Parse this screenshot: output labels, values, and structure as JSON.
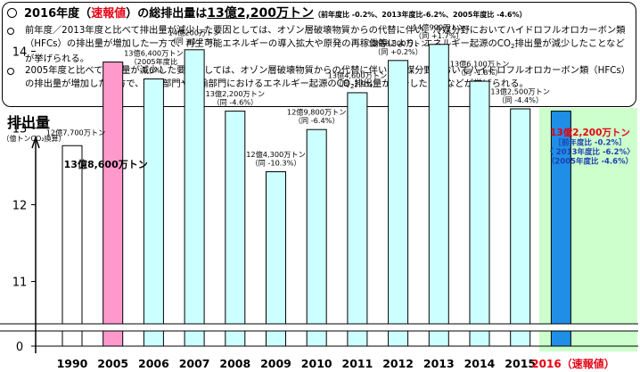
{
  "summary": {
    "title_main": "2016年度（",
    "title_red": "速報値",
    "title_mid": "）の総排出量は",
    "title_value": "13億2,200万トン",
    "title_note": "（前年度比 -0.2%、2013年度比-6.2%、2005年度比 -4.6%）",
    "bullet1_a": "前年度／2013年度と比べて排出量が減少した要因としては、オゾン層破壊物質からの代替に伴い、冷媒分野においてハイドロフルオロカーボン類（HFCs）の排出量が増加した一方で、再生可能エネルギーの導入拡大や原発の再稼働等により、エネルギー起源のCO",
    "bullet1_sub": "2",
    "bullet1_b": "排出量が減少したことなどが挙げられる。",
    "bullet2_a": "2005年度と比べて排出量が減少した要因としては、オゾン層破壊物質からの代替に伴い、冷媒分野においてハイドロフルオロカーボン類（HFCs）の排出量が増加した一方で、産業部門や運輸部門におけるエネルギー起源のCO",
    "bullet2_sub": "2",
    "bullet2_b": "排出量が減少したことなどが挙げられる。"
  },
  "chart_data": {
    "type": "bar",
    "ylabel": "排出量",
    "ylabel_unit": "（億トンCO₂換算）",
    "yticks": [
      "14",
      "13",
      "12",
      "11",
      "0"
    ],
    "categories": [
      "1990",
      "2005",
      "2006",
      "2007",
      "2008",
      "2009",
      "2010",
      "2011",
      "2012",
      "2013",
      "2014",
      "2015",
      "2016（速報値）"
    ],
    "values": [
      12.77,
      13.86,
      13.64,
      14.02,
      13.22,
      12.43,
      12.98,
      13.46,
      13.88,
      14.09,
      13.61,
      13.25,
      13.22
    ],
    "bar_styles": [
      "white",
      "pink",
      "cyan",
      "cyan",
      "cyan",
      "cyan",
      "cyan",
      "cyan",
      "cyan",
      "cyan",
      "cyan",
      "cyan",
      "blue"
    ],
    "labels": [
      [
        "12億7,700万トン"
      ],
      [
        "13億8,600万トン"
      ],
      [
        "13億6,400万トン",
        "（2005年度比",
        "-1.6%）"
      ],
      [
        "14億200万トン",
        "（同 +1.2 %）"
      ],
      [
        "13億2,200万トン",
        "（同 -4.6%）"
      ],
      [
        "12億4,300万トン",
        "（同 -10.3%）"
      ],
      [
        "12億9,800万トン",
        "（同 -6.4%）"
      ],
      [
        "13億4,600万トン",
        "（同 -2.9%）"
      ],
      [
        "13億8,800万トン",
        "（同 +0.2%）"
      ],
      [
        "14億900万トン",
        "（同 +1.7%）"
      ],
      [
        "13億6,100万トン",
        "（同 -1.8%）"
      ],
      [
        "13億2,500万トン",
        "（同 -4.4%）"
      ],
      [
        "13億2,200万トン",
        "［前年度比 -0.2%］",
        "〈 2013年度比 -6.2%〉",
        "（2005年度比 -4.6%）"
      ]
    ],
    "colors": {
      "white": "#ffffff",
      "pink": "#ff99cc",
      "cyan": "#ccffff",
      "blue": "#1f8ee6",
      "highlight_bg": "#ccffcc",
      "red": "#e60012",
      "navy": "#1f3faf"
    }
  }
}
